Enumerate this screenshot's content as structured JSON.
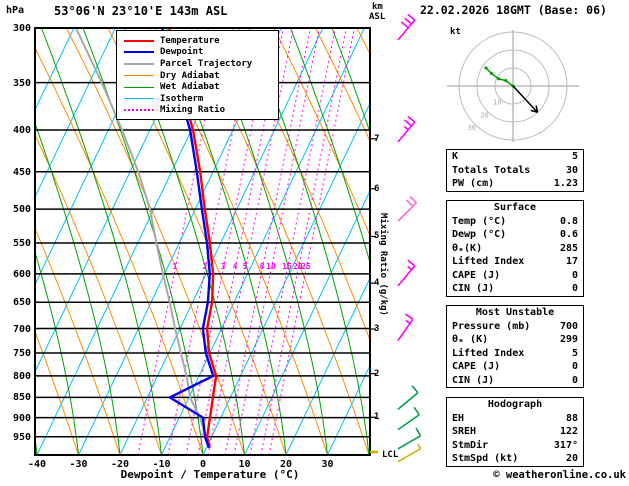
{
  "header": {
    "pressure_unit": "hPa",
    "station": "53°06'N 23°10'E 143m ASL",
    "altitude_unit": "km",
    "altitude_ref": "ASL",
    "datetime": "22.02.2026 18GMT (Base: 06)"
  },
  "axes": {
    "pressure_ticks": [
      300,
      350,
      400,
      450,
      500,
      550,
      600,
      650,
      700,
      750,
      800,
      850,
      900,
      950
    ],
    "temp_ticks": [
      -40,
      -30,
      -20,
      -10,
      0,
      10,
      20,
      30
    ],
    "km_ticks": [
      7,
      6,
      5,
      4,
      3,
      2,
      1
    ],
    "xlabel": "Dewpoint / Temperature (°C)",
    "mixing_ratio_axis_label": "Mixing Ratio (g/kg)",
    "lcl_label": "LCL"
  },
  "mixing_ratio_labels": [
    1,
    2,
    3,
    4,
    5,
    8,
    10,
    15,
    20,
    25
  ],
  "legend": [
    {
      "label": "Temperature",
      "color": "#ff0000",
      "style": "solid"
    },
    {
      "label": "Dewpoint",
      "color": "#0000ee",
      "style": "solid"
    },
    {
      "label": "Parcel Trajectory",
      "color": "#a8a8a8",
      "style": "solid"
    },
    {
      "label": "Dry Adiabat",
      "color": "#ff8c00",
      "style": "solid"
    },
    {
      "label": "Wet Adiabat",
      "color": "#00a000",
      "style": "solid"
    },
    {
      "label": "Isotherm",
      "color": "#00bfff",
      "style": "solid"
    },
    {
      "label": "Mixing Ratio",
      "color": "#ff00ff",
      "style": "dotted"
    }
  ],
  "colors": {
    "isotherm": "#00bfff",
    "dry_adiabat": "#ff8c00",
    "wet_adiabat": "#00a000",
    "mixing_ratio": "#ff00ff",
    "temperature": "#ff0000",
    "dewpoint": "#0000ee",
    "parcel": "#a8a8a8",
    "barb_upper": "#ff00ff",
    "barb_mid": "#ff66cc",
    "barb_lower": "#00a050",
    "lcl_marker": "#c8b400"
  },
  "chart_data": {
    "type": "line",
    "title": "Skew-T log-P sounding",
    "x_axis": {
      "label": "Dewpoint / Temperature (°C)",
      "ticks": [
        -40,
        -30,
        -20,
        -10,
        0,
        10,
        20,
        30
      ]
    },
    "y_axis": {
      "label": "hPa",
      "scale": "log",
      "range": [
        1000,
        300
      ],
      "ticks": [
        300,
        350,
        400,
        450,
        500,
        550,
        600,
        650,
        700,
        750,
        800,
        850,
        900,
        950
      ]
    },
    "secondary_y_axis": {
      "label": "km ASL",
      "ticks": [
        7,
        6,
        5,
        4,
        3,
        2,
        1
      ]
    },
    "series": [
      {
        "id": "parcel",
        "name": "Parcel Trajectory",
        "color": "#a8a8a8",
        "points": [
          [
            980,
            0.8
          ],
          [
            900,
            -5
          ],
          [
            850,
            -9.7
          ],
          [
            800,
            -13
          ],
          [
            750,
            -17
          ],
          [
            700,
            -21.2
          ],
          [
            650,
            -25.5
          ],
          [
            600,
            -30.4
          ],
          [
            550,
            -35.5
          ],
          [
            500,
            -40.9
          ],
          [
            450,
            -48
          ],
          [
            400,
            -56.7
          ],
          [
            350,
            -67
          ],
          [
            300,
            -79.5
          ]
        ]
      },
      {
        "id": "temperature",
        "name": "Temperature",
        "color": "#ff0000",
        "points": [
          [
            980,
            0.8
          ],
          [
            950,
            -1.1
          ],
          [
            900,
            -2.6
          ],
          [
            850,
            -4.2
          ],
          [
            800,
            -5.9
          ],
          [
            750,
            -10.2
          ],
          [
            700,
            -13.5
          ],
          [
            650,
            -15.3
          ],
          [
            600,
            -18.3
          ],
          [
            550,
            -22.6
          ],
          [
            500,
            -27.7
          ],
          [
            450,
            -33.1
          ],
          [
            400,
            -39.6
          ],
          [
            350,
            -48.1
          ],
          [
            300,
            -57
          ]
        ]
      },
      {
        "id": "dewpoint",
        "name": "Dewpoint",
        "color": "#0000ee",
        "points": [
          [
            980,
            0.6
          ],
          [
            950,
            -1.6
          ],
          [
            900,
            -4.3
          ],
          [
            850,
            -14.6
          ],
          [
            800,
            -6.6
          ],
          [
            750,
            -11
          ],
          [
            700,
            -14.5
          ],
          [
            650,
            -16.3
          ],
          [
            600,
            -19.1
          ],
          [
            550,
            -23.3
          ],
          [
            500,
            -28.4
          ],
          [
            450,
            -33.9
          ],
          [
            400,
            -40.3
          ],
          [
            350,
            -49.1
          ],
          [
            300,
            -58.7
          ]
        ]
      }
    ],
    "mixing_ratio_lines": [
      1,
      2,
      3,
      4,
      5,
      8,
      10,
      15,
      20,
      25
    ]
  },
  "wind_barbs": [
    {
      "p": 300,
      "speed": 30,
      "dir": 40,
      "color": "#ff00ff"
    },
    {
      "p": 400,
      "speed": 25,
      "dir": 40,
      "color": "#ff00ff"
    },
    {
      "p": 500,
      "speed": 20,
      "dir": 45,
      "color": "#ff66cc"
    },
    {
      "p": 600,
      "speed": 15,
      "dir": 40,
      "color": "#ff00ff"
    },
    {
      "p": 700,
      "speed": 15,
      "dir": 35,
      "color": "#ff00ff"
    },
    {
      "p": 850,
      "speed": 10,
      "dir": 50,
      "color": "#00a050"
    },
    {
      "p": 900,
      "speed": 10,
      "dir": 55,
      "color": "#00a050"
    },
    {
      "p": 950,
      "speed": 10,
      "dir": 60,
      "color": "#00a050"
    },
    {
      "p": 985,
      "speed": 5,
      "dir": 60,
      "color": "#c8b400"
    }
  ],
  "hodograph": {
    "unit": "kt",
    "rings": [
      10,
      20,
      30
    ],
    "ring_labels": [
      "10",
      "20",
      "30"
    ],
    "trace": [
      [
        0,
        0
      ],
      [
        -4,
        3
      ],
      [
        -8,
        4
      ],
      [
        -12,
        7
      ],
      [
        -15,
        10
      ]
    ],
    "storm_motion": {
      "dir": 317,
      "speed": 20
    }
  },
  "stats": {
    "top": [
      [
        "K",
        "5"
      ],
      [
        "Totals Totals",
        "30"
      ],
      [
        "PW (cm)",
        "1.23"
      ]
    ],
    "sections": [
      {
        "title": "Surface",
        "rows": [
          [
            "Temp (°C)",
            "0.8"
          ],
          [
            "Dewp (°C)",
            "0.6"
          ],
          [
            "θₑ(K)",
            "285"
          ],
          [
            "Lifted Index",
            "17"
          ],
          [
            "CAPE (J)",
            "0"
          ],
          [
            "CIN (J)",
            "0"
          ]
        ]
      },
      {
        "title": "Most Unstable",
        "rows": [
          [
            "Pressure (mb)",
            "700"
          ],
          [
            "θₑ (K)",
            "299"
          ],
          [
            "Lifted Index",
            "5"
          ],
          [
            "CAPE (J)",
            "0"
          ],
          [
            "CIN (J)",
            "0"
          ]
        ]
      },
      {
        "title": "Hodograph",
        "rows": [
          [
            "EH",
            "88"
          ],
          [
            "SREH",
            "122"
          ],
          [
            "StmDir",
            "317°"
          ],
          [
            "StmSpd (kt)",
            "20"
          ]
        ]
      }
    ]
  },
  "footer": "© weatheronline.co.uk"
}
